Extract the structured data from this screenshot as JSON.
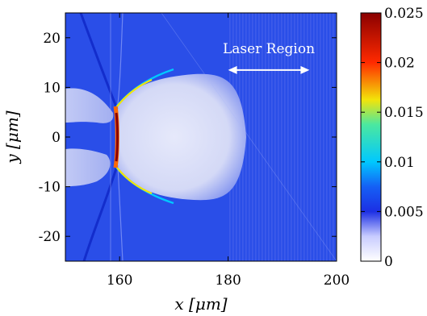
{
  "chart_data": {
    "type": "heatmap",
    "title": "",
    "xlabel": "x [μm]",
    "ylabel": "y [μm]",
    "xlim": [
      150,
      200
    ],
    "ylim": [
      -25,
      25
    ],
    "x_ticks": [
      160,
      180,
      200
    ],
    "y_ticks": [
      20,
      10,
      0,
      -10,
      -20
    ],
    "colorbar": {
      "range": [
        0,
        0.025
      ],
      "ticks": [
        0,
        0.005,
        0.01,
        0.015,
        0.02,
        0.025
      ],
      "tick_labels": [
        "0",
        "0.005",
        "0.01",
        "0.015",
        "0.02",
        "0.025"
      ],
      "colormap": [
        "#ffffff",
        "#1c2fe4",
        "#00c8ff",
        "#f2e40a",
        "#ff2a00",
        "#8a0000"
      ]
    },
    "annotation": {
      "text": "Laser Region",
      "x_from": 180,
      "x_to": 195,
      "y": 13.5
    },
    "features": {
      "background_value": 0.003,
      "shock_front_x": 159.5,
      "shock_front_y_range": [
        -6,
        6
      ],
      "peak_value": 0.025
    }
  }
}
